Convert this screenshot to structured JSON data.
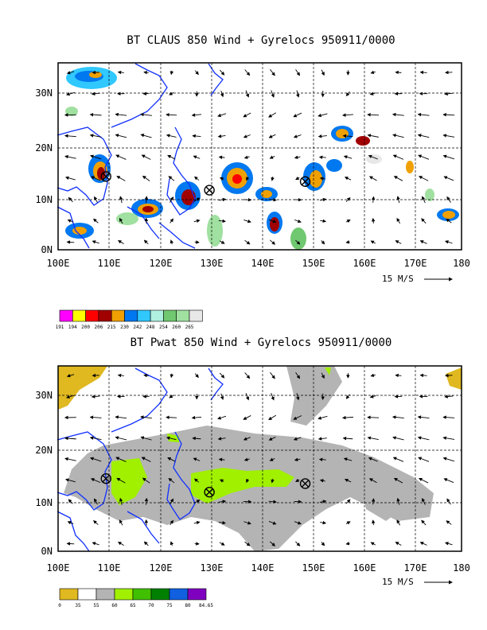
{
  "panels": [
    {
      "title": "BT CLAUS 850 Wind + Gyrelocs 950911/0000",
      "colorbar_labels": [
        "191",
        "194",
        "200",
        "206",
        "215",
        "230",
        "242",
        "248",
        "254",
        "260",
        "265"
      ],
      "colorbar_colors": [
        "#ff00ff",
        "#ffff00",
        "#ff0000",
        "#a00000",
        "#f0a000",
        "#0078f0",
        "#30c8ff",
        "#b0f0e0",
        "#70c870",
        "#a0e0a0",
        "#e8e8e8"
      ]
    },
    {
      "title": "BT Pwat 850 Wind + Gyrelocs 950911/0000",
      "colorbar_labels": [
        "0",
        "35",
        "55",
        "60",
        "65",
        "70",
        "75",
        "80",
        "84.65"
      ],
      "colorbar_colors": [
        "#e0b820",
        "#ffffff",
        "#b4b4b4",
        "#a0f000",
        "#40c000",
        "#008000",
        "#1060e0",
        "#8000c0"
      ]
    }
  ],
  "x_ticks": [
    "100E",
    "110E",
    "120E",
    "130E",
    "140E",
    "150E",
    "160E",
    "170E",
    "180"
  ],
  "y_ticks": [
    "0N",
    "10N",
    "20N",
    "30N"
  ],
  "vector_scale_label": "15 M/S",
  "gyre_locations": [
    {
      "lon": 109.5,
      "lat": 14.5
    },
    {
      "lon": 130.0,
      "lat": 11.8
    },
    {
      "lon": 149.0,
      "lat": 13.5
    }
  ]
}
